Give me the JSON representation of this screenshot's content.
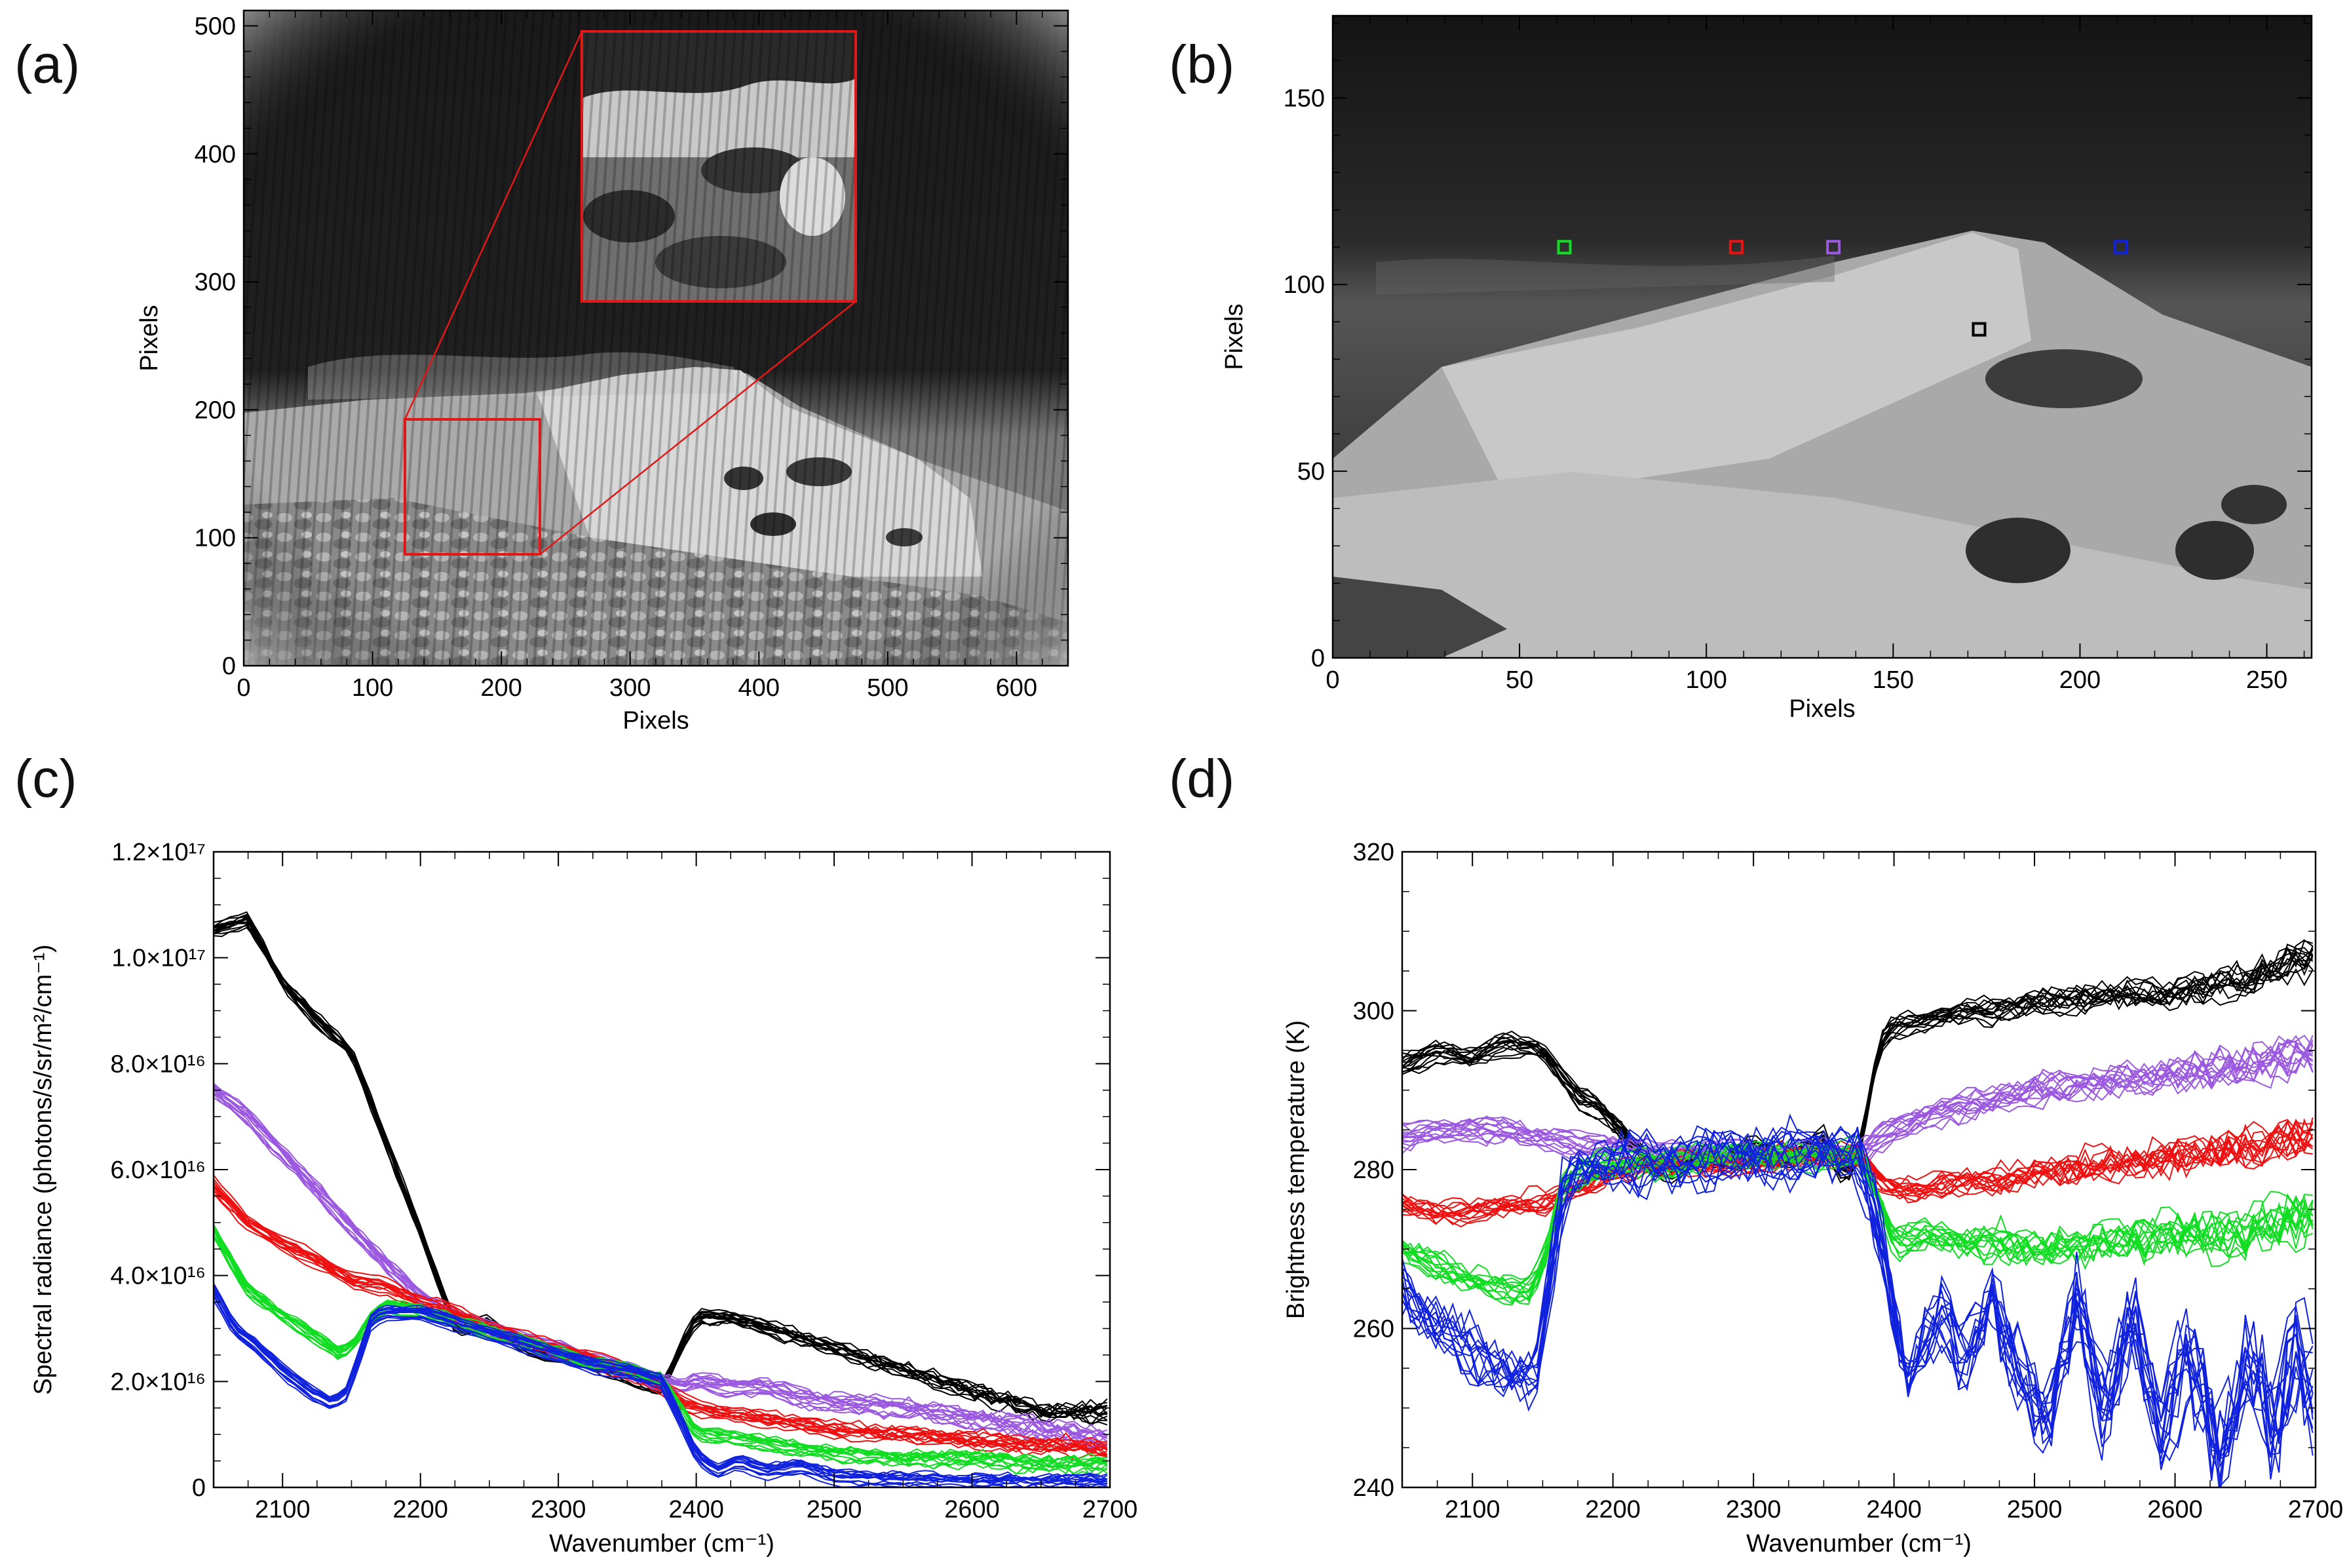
{
  "panels": {
    "a": {
      "letter": "(a)"
    },
    "b": {
      "letter": "(b)"
    },
    "c": {
      "letter": "(c)"
    },
    "d": {
      "letter": "(d)"
    }
  },
  "colors": {
    "black": "#000000",
    "purple": "#9b59e0",
    "red": "#ee1111",
    "green": "#11dd22",
    "blue": "#1122dd",
    "frame": "#000000",
    "inset_box": "#e01818"
  },
  "chart_data": [
    {
      "id": "a",
      "type": "image",
      "xlabel": "Pixels",
      "ylabel": "Pixels",
      "xlim": [
        0,
        640
      ],
      "ylim": [
        0,
        512
      ],
      "xticks": [
        0,
        100,
        200,
        300,
        400,
        500,
        600
      ],
      "yticks": [
        0,
        100,
        200,
        300,
        400,
        500
      ],
      "zoom_box_region": {
        "x_range": [
          125,
          230
        ],
        "y_range": [
          88,
          190
        ]
      }
    },
    {
      "id": "b",
      "type": "image",
      "xlabel": "Pixels",
      "ylabel": "Pixels",
      "xlim": [
        0,
        262
      ],
      "ylim": [
        0,
        172
      ],
      "xticks": [
        0,
        50,
        100,
        150,
        200,
        250
      ],
      "yticks": [
        0,
        50,
        100,
        150
      ],
      "markers": [
        {
          "color": "green",
          "x": 62,
          "y": 110
        },
        {
          "color": "red",
          "x": 108,
          "y": 110
        },
        {
          "color": "purple",
          "x": 134,
          "y": 110
        },
        {
          "color": "blue",
          "x": 211,
          "y": 110
        },
        {
          "color": "black",
          "x": 173,
          "y": 88
        }
      ]
    },
    {
      "id": "c",
      "type": "line",
      "xlabel": "Wavenumber (cm⁻¹)",
      "ylabel": "Spectral radiance (photons/s/sr/m²/cm⁻¹)",
      "xlim": [
        2050,
        2700
      ],
      "ylim": [
        0,
        1.2e+17
      ],
      "xticks": [
        2100,
        2200,
        2300,
        2400,
        2500,
        2600,
        2700
      ],
      "yticks": [
        0,
        2e+16,
        4e+16,
        6e+16,
        8e+16,
        1e+17,
        1.2e+17
      ],
      "ytick_labels": [
        "0",
        "2.0×10¹⁶",
        "4.0×10¹⁶",
        "6.0×10¹⁶",
        "8.0×10¹⁶",
        "1.0×10¹⁷",
        "1.2×10¹⁷"
      ],
      "series": [
        {
          "name": "black",
          "x": [
            2050,
            2075,
            2100,
            2125,
            2150,
            2175,
            2200,
            2225,
            2250,
            2275,
            2300,
            2325,
            2350,
            2375,
            2390,
            2400,
            2425,
            2450,
            2475,
            2500,
            2550,
            2600,
            2650,
            2700
          ],
          "values": [
            1.05e+17,
            1.07e+17,
            9.5e+16,
            8.8e+16,
            8.2e+16,
            6.5e+16,
            4.8e+16,
            3e+16,
            3.1e+16,
            2.6e+16,
            2.5e+16,
            2.3e+16,
            2.1e+16,
            1.8e+16,
            2.7e+16,
            3.2e+16,
            3.2e+16,
            3e+16,
            2.8e+16,
            2.6e+16,
            2.2e+16,
            1.8e+16,
            1.4e+16,
            1.4e+16
          ]
        },
        {
          "name": "purple",
          "x": [
            2050,
            2075,
            2100,
            2125,
            2150,
            2175,
            2200,
            2225,
            2250,
            2275,
            2300,
            2325,
            2350,
            2375,
            2390,
            2400,
            2425,
            2450,
            2475,
            2500,
            2550,
            2600,
            2650,
            2700
          ],
          "values": [
            7.5e+16,
            7e+16,
            6.3e+16,
            5.6e+16,
            4.9e+16,
            4.2e+16,
            3.6e+16,
            3.2e+16,
            3e+16,
            2.8e+16,
            2.6e+16,
            2.4e+16,
            2.2e+16,
            2e+16,
            1.9e+16,
            2e+16,
            1.9e+16,
            1.9e+16,
            1.7e+16,
            1.6e+16,
            1.5e+16,
            1.3e+16,
            1.1e+16,
            9000000000000000.0
          ]
        },
        {
          "name": "red",
          "x": [
            2050,
            2075,
            2100,
            2125,
            2150,
            2175,
            2200,
            2225,
            2250,
            2275,
            2300,
            2325,
            2350,
            2375,
            2390,
            2400,
            2425,
            2450,
            2475,
            2500,
            2550,
            2600,
            2650,
            2700
          ],
          "values": [
            5.7e+16,
            5e+16,
            4.6e+16,
            4.3e+16,
            3.9e+16,
            3.8e+16,
            3.5e+16,
            3.3e+16,
            3e+16,
            2.8e+16,
            2.6e+16,
            2.4e+16,
            2.2e+16,
            1.9e+16,
            1.6e+16,
            1.5e+16,
            1.4e+16,
            1.3e+16,
            1.2e+16,
            1.1e+16,
            1e+16,
            9000000000000000.0,
            8000000000000000.0,
            7000000000000000.0
          ]
        },
        {
          "name": "green",
          "x": [
            2050,
            2075,
            2100,
            2125,
            2140,
            2150,
            2165,
            2175,
            2200,
            2225,
            2250,
            2275,
            2300,
            2325,
            2350,
            2375,
            2390,
            2400,
            2425,
            2450,
            2475,
            2500,
            2550,
            2600,
            2650,
            2700
          ],
          "values": [
            4.8e+16,
            3.7e+16,
            3.2e+16,
            2.8e+16,
            2.5e+16,
            2.6e+16,
            3.2e+16,
            3.4e+16,
            3.3e+16,
            3.1e+16,
            2.9e+16,
            2.7e+16,
            2.5e+16,
            2.3e+16,
            2.2e+16,
            2e+16,
            1.4e+16,
            1e+16,
            9000000000000000.0,
            8000000000000000.0,
            7000000000000000.0,
            6000000000000000.0,
            5000000000000000.0,
            5000000000000000.0,
            4000000000000000.0,
            4000000000000000.0
          ]
        },
        {
          "name": "blue",
          "x": [
            2050,
            2065,
            2080,
            2100,
            2120,
            2135,
            2145,
            2155,
            2165,
            2175,
            2200,
            2225,
            2250,
            2275,
            2300,
            2325,
            2350,
            2375,
            2390,
            2400,
            2415,
            2430,
            2450,
            2475,
            2500,
            2550,
            2600,
            2650,
            2700
          ],
          "values": [
            3.7e+16,
            3e+16,
            2.7e+16,
            2.2e+16,
            1.8e+16,
            1.6e+16,
            1.7e+16,
            2.4e+16,
            3.2e+16,
            3.3e+16,
            3.3e+16,
            3.1e+16,
            2.9e+16,
            2.7e+16,
            2.5e+16,
            2.3e+16,
            2.2e+16,
            2e+16,
            1.2e+16,
            6000000000000000.0,
            3000000000000000.0,
            5000000000000000.0,
            3000000000000000.0,
            4000000000000000.0,
            2000000000000000.0,
            1500000000000000.0,
            1000000000000000.0,
            1000000000000000.0,
            1000000000000000.0
          ]
        }
      ]
    },
    {
      "id": "d",
      "type": "line",
      "xlabel": "Wavenumber (cm⁻¹)",
      "ylabel": "Brightness temperature (K)",
      "xlim": [
        2050,
        2700
      ],
      "ylim": [
        240,
        320
      ],
      "xticks": [
        2100,
        2200,
        2300,
        2400,
        2500,
        2600,
        2700
      ],
      "yticks": [
        240,
        260,
        280,
        300,
        320
      ],
      "series": [
        {
          "name": "black",
          "x": [
            2050,
            2075,
            2100,
            2125,
            2150,
            2175,
            2190,
            2200,
            2225,
            2240,
            2260,
            2280,
            2300,
            2325,
            2350,
            2365,
            2375,
            2390,
            2400,
            2425,
            2450,
            2475,
            2500,
            2550,
            2600,
            2650,
            2700
          ],
          "values": [
            293,
            295,
            294,
            296,
            295,
            289,
            288,
            286,
            281,
            280,
            282,
            281,
            283,
            281,
            284,
            279,
            282,
            296,
            298,
            299,
            300,
            300,
            301,
            302,
            302,
            304,
            307
          ]
        },
        {
          "name": "purple",
          "x": [
            2050,
            2075,
            2100,
            2125,
            2150,
            2175,
            2200,
            2225,
            2250,
            2275,
            2300,
            2325,
            2350,
            2375,
            2390,
            2400,
            2425,
            2450,
            2475,
            2500,
            2550,
            2600,
            2650,
            2700
          ],
          "values": [
            284,
            285,
            285,
            285,
            284,
            283,
            283,
            282,
            282,
            282,
            282,
            282,
            282,
            282,
            284,
            285,
            287,
            288,
            289,
            290,
            291,
            292,
            293,
            295
          ]
        },
        {
          "name": "red",
          "x": [
            2050,
            2075,
            2100,
            2125,
            2150,
            2175,
            2200,
            2225,
            2250,
            2275,
            2300,
            2325,
            2350,
            2375,
            2390,
            2400,
            2425,
            2450,
            2475,
            2500,
            2550,
            2600,
            2650,
            2700
          ],
          "values": [
            276,
            275,
            275,
            276,
            276,
            278,
            280,
            281,
            281,
            281,
            281,
            282,
            282,
            282,
            279,
            278,
            278,
            279,
            279,
            280,
            281,
            282,
            283,
            285
          ]
        },
        {
          "name": "green",
          "x": [
            2050,
            2075,
            2100,
            2125,
            2140,
            2150,
            2165,
            2175,
            2200,
            2225,
            2250,
            2275,
            2300,
            2325,
            2350,
            2375,
            2390,
            2400,
            2425,
            2450,
            2475,
            2500,
            2550,
            2600,
            2650,
            2700
          ],
          "values": [
            270,
            268,
            266,
            265,
            265,
            268,
            278,
            280,
            281,
            281,
            281,
            282,
            282,
            282,
            282,
            282,
            276,
            271,
            272,
            271,
            271,
            270,
            271,
            272,
            272,
            275
          ]
        },
        {
          "name": "blue",
          "x": [
            2050,
            2065,
            2080,
            2100,
            2120,
            2135,
            2145,
            2155,
            2165,
            2175,
            2200,
            2225,
            2250,
            2275,
            2300,
            2325,
            2350,
            2375,
            2390,
            2400,
            2410,
            2420,
            2435,
            2450,
            2470,
            2490,
            2510,
            2530,
            2550,
            2570,
            2590,
            2610,
            2630,
            2650,
            2670,
            2690,
            2700
          ],
          "values": [
            265,
            262,
            260,
            257,
            255,
            254,
            254,
            266,
            278,
            280,
            281,
            281,
            281,
            282,
            282,
            282,
            282,
            282,
            272,
            262,
            254,
            258,
            262,
            256,
            264,
            254,
            248,
            264,
            248,
            262,
            246,
            258,
            244,
            256,
            248,
            258,
            250
          ]
        }
      ]
    }
  ]
}
